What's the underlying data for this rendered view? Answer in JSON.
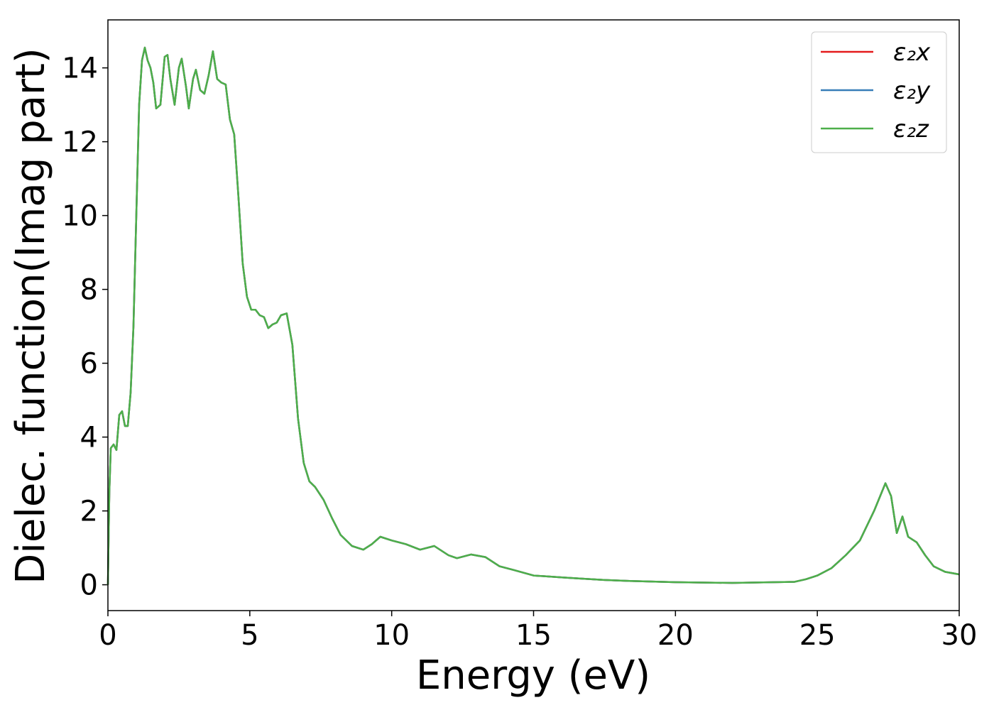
{
  "chart_data": {
    "type": "line",
    "xlabel": "Energy (eV)",
    "ylabel": "Dielec. function(Imag part)",
    "x": [
      0,
      0.05,
      0.1,
      0.2,
      0.3,
      0.4,
      0.5,
      0.6,
      0.7,
      0.8,
      0.9,
      1.0,
      1.1,
      1.2,
      1.3,
      1.4,
      1.5,
      1.6,
      1.7,
      1.85,
      2.0,
      2.1,
      2.2,
      2.35,
      2.5,
      2.6,
      2.75,
      2.85,
      3.0,
      3.1,
      3.25,
      3.4,
      3.55,
      3.7,
      3.85,
      4.0,
      4.15,
      4.3,
      4.45,
      4.6,
      4.75,
      4.9,
      5.05,
      5.2,
      5.35,
      5.5,
      5.65,
      5.8,
      5.95,
      6.1,
      6.3,
      6.5,
      6.7,
      6.9,
      7.1,
      7.3,
      7.6,
      7.9,
      8.2,
      8.6,
      9.0,
      9.3,
      9.6,
      10.0,
      10.5,
      11.0,
      11.5,
      12.0,
      12.3,
      12.8,
      13.3,
      13.8,
      14.3,
      15.0,
      16.0,
      16.6,
      17.5,
      18.5,
      20.0,
      22.0,
      24.2,
      24.6,
      25.0,
      25.5,
      26.0,
      26.5,
      27.0,
      27.4,
      27.6,
      27.8,
      28.0,
      28.2,
      28.5,
      28.8,
      29.1,
      29.5,
      30.0
    ],
    "series": [
      {
        "name": "ε₂x",
        "color": "#e41a1c",
        "values": [
          0,
          2.5,
          3.7,
          3.8,
          3.65,
          4.6,
          4.7,
          4.3,
          4.3,
          5.2,
          7.0,
          10.0,
          13.0,
          14.2,
          14.55,
          14.2,
          14.0,
          13.6,
          12.9,
          13.0,
          14.3,
          14.35,
          13.7,
          13.0,
          14.0,
          14.25,
          13.5,
          12.9,
          13.7,
          13.95,
          13.4,
          13.3,
          13.8,
          14.45,
          13.7,
          13.6,
          13.55,
          12.6,
          12.2,
          10.5,
          8.7,
          7.8,
          7.45,
          7.45,
          7.3,
          7.25,
          6.95,
          7.05,
          7.1,
          7.3,
          7.35,
          6.5,
          4.5,
          3.3,
          2.8,
          2.65,
          2.3,
          1.8,
          1.35,
          1.05,
          0.95,
          1.1,
          1.3,
          1.2,
          1.1,
          0.95,
          1.05,
          0.8,
          0.72,
          0.82,
          0.75,
          0.5,
          0.4,
          0.25,
          0.2,
          0.17,
          0.13,
          0.1,
          0.07,
          0.05,
          0.08,
          0.15,
          0.25,
          0.45,
          0.8,
          1.2,
          2.0,
          2.75,
          2.4,
          1.4,
          1.85,
          1.3,
          1.15,
          0.8,
          0.5,
          0.35,
          0.28
        ]
      },
      {
        "name": "ε₂y",
        "color": "#377eb8",
        "values": [
          0,
          2.5,
          3.7,
          3.8,
          3.65,
          4.6,
          4.7,
          4.3,
          4.3,
          5.2,
          7.0,
          10.0,
          13.0,
          14.2,
          14.55,
          14.2,
          14.0,
          13.6,
          12.9,
          13.0,
          14.3,
          14.35,
          13.7,
          13.0,
          14.0,
          14.25,
          13.5,
          12.9,
          13.7,
          13.95,
          13.4,
          13.3,
          13.8,
          14.45,
          13.7,
          13.6,
          13.55,
          12.6,
          12.2,
          10.5,
          8.7,
          7.8,
          7.45,
          7.45,
          7.3,
          7.25,
          6.95,
          7.05,
          7.1,
          7.3,
          7.35,
          6.5,
          4.5,
          3.3,
          2.8,
          2.65,
          2.3,
          1.8,
          1.35,
          1.05,
          0.95,
          1.1,
          1.3,
          1.2,
          1.1,
          0.95,
          1.05,
          0.8,
          0.72,
          0.82,
          0.75,
          0.5,
          0.4,
          0.25,
          0.2,
          0.17,
          0.13,
          0.1,
          0.07,
          0.05,
          0.08,
          0.15,
          0.25,
          0.45,
          0.8,
          1.2,
          2.0,
          2.75,
          2.4,
          1.4,
          1.85,
          1.3,
          1.15,
          0.8,
          0.5,
          0.35,
          0.28
        ]
      },
      {
        "name": "ε₂z",
        "color": "#4daf4a",
        "values": [
          0,
          2.5,
          3.7,
          3.8,
          3.65,
          4.6,
          4.7,
          4.3,
          4.3,
          5.2,
          7.0,
          10.0,
          13.0,
          14.2,
          14.55,
          14.2,
          14.0,
          13.6,
          12.9,
          13.0,
          14.3,
          14.35,
          13.7,
          13.0,
          14.0,
          14.25,
          13.5,
          12.9,
          13.7,
          13.95,
          13.4,
          13.3,
          13.8,
          14.45,
          13.7,
          13.6,
          13.55,
          12.6,
          12.2,
          10.5,
          8.7,
          7.8,
          7.45,
          7.45,
          7.3,
          7.25,
          6.95,
          7.05,
          7.1,
          7.3,
          7.35,
          6.5,
          4.5,
          3.3,
          2.8,
          2.65,
          2.3,
          1.8,
          1.35,
          1.05,
          0.95,
          1.1,
          1.3,
          1.2,
          1.1,
          0.95,
          1.05,
          0.8,
          0.72,
          0.82,
          0.75,
          0.5,
          0.4,
          0.25,
          0.2,
          0.17,
          0.13,
          0.1,
          0.07,
          0.05,
          0.08,
          0.15,
          0.25,
          0.45,
          0.8,
          1.2,
          2.0,
          2.75,
          2.4,
          1.4,
          1.85,
          1.3,
          1.15,
          0.8,
          0.5,
          0.35,
          0.28
        ]
      }
    ],
    "xlim": [
      0,
      30
    ],
    "xticks": [
      0,
      5,
      10,
      15,
      20,
      25,
      30
    ],
    "ylim": [
      -0.7,
      15.3
    ],
    "yticks": [
      0,
      2,
      4,
      6,
      8,
      10,
      12,
      14
    ],
    "grid": false,
    "legend": "upper right"
  }
}
